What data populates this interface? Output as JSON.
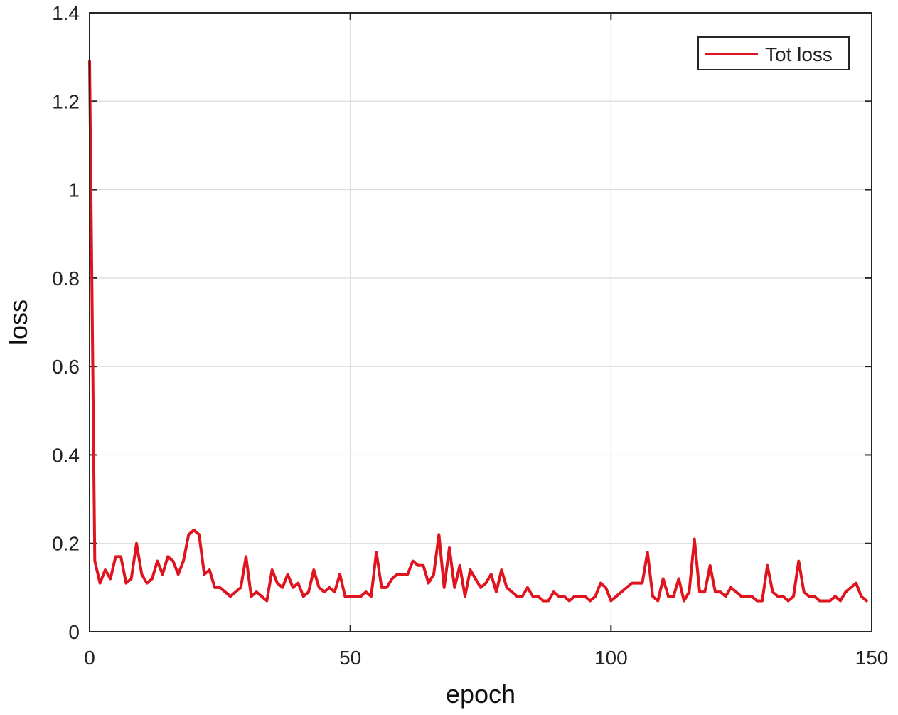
{
  "chart_data": {
    "type": "line",
    "title": "",
    "xlabel": "epoch",
    "ylabel": "loss",
    "xlim": [
      0,
      150
    ],
    "ylim": [
      0,
      1.4
    ],
    "x_ticks": [
      "0",
      "50",
      "100",
      "150"
    ],
    "y_ticks": [
      "0",
      "0.2",
      "0.4",
      "0.6",
      "0.8",
      "1",
      "1.2",
      "1.4"
    ],
    "x_tick_values": [
      0,
      50,
      100,
      150
    ],
    "y_tick_values": [
      0,
      0.2,
      0.4,
      0.6,
      0.8,
      1,
      1.2,
      1.4
    ],
    "grid": true,
    "legend_position": "top-right",
    "series": [
      {
        "name": "Tot loss",
        "color": "#e0141e",
        "x": [
          0,
          1,
          2,
          3,
          4,
          5,
          6,
          7,
          8,
          9,
          10,
          11,
          12,
          13,
          14,
          15,
          16,
          17,
          18,
          19,
          20,
          21,
          22,
          23,
          24,
          25,
          26,
          27,
          28,
          29,
          30,
          31,
          32,
          33,
          34,
          35,
          36,
          37,
          38,
          39,
          40,
          41,
          42,
          43,
          44,
          45,
          46,
          47,
          48,
          49,
          50,
          51,
          52,
          53,
          54,
          55,
          56,
          57,
          58,
          59,
          60,
          61,
          62,
          63,
          64,
          65,
          66,
          67,
          68,
          69,
          70,
          71,
          72,
          73,
          74,
          75,
          76,
          77,
          78,
          79,
          80,
          81,
          82,
          83,
          84,
          85,
          86,
          87,
          88,
          89,
          90,
          91,
          92,
          93,
          94,
          95,
          96,
          97,
          98,
          99,
          100,
          101,
          102,
          103,
          104,
          105,
          106,
          107,
          108,
          109,
          110,
          111,
          112,
          113,
          114,
          115,
          116,
          117,
          118,
          119,
          120,
          121,
          122,
          123,
          124,
          125,
          126,
          127,
          128,
          129,
          130,
          131,
          132,
          133,
          134,
          135,
          136,
          137,
          138,
          139,
          140,
          141,
          142,
          143,
          144,
          145,
          146,
          147,
          148,
          149
        ],
        "y": [
          1.29,
          0.16,
          0.11,
          0.14,
          0.12,
          0.17,
          0.17,
          0.11,
          0.12,
          0.2,
          0.13,
          0.11,
          0.12,
          0.16,
          0.13,
          0.17,
          0.16,
          0.13,
          0.16,
          0.22,
          0.23,
          0.22,
          0.13,
          0.14,
          0.1,
          0.1,
          0.09,
          0.08,
          0.09,
          0.1,
          0.17,
          0.08,
          0.09,
          0.08,
          0.07,
          0.14,
          0.11,
          0.1,
          0.13,
          0.1,
          0.11,
          0.08,
          0.09,
          0.14,
          0.1,
          0.09,
          0.1,
          0.09,
          0.13,
          0.08,
          0.08,
          0.08,
          0.08,
          0.09,
          0.08,
          0.18,
          0.1,
          0.1,
          0.12,
          0.13,
          0.13,
          0.13,
          0.16,
          0.15,
          0.15,
          0.11,
          0.13,
          0.22,
          0.1,
          0.19,
          0.1,
          0.15,
          0.08,
          0.14,
          0.12,
          0.1,
          0.11,
          0.13,
          0.09,
          0.14,
          0.1,
          0.09,
          0.08,
          0.08,
          0.1,
          0.08,
          0.08,
          0.07,
          0.07,
          0.09,
          0.08,
          0.08,
          0.07,
          0.08,
          0.08,
          0.08,
          0.07,
          0.08,
          0.11,
          0.1,
          0.07,
          0.08,
          0.09,
          0.1,
          0.11,
          0.11,
          0.11,
          0.18,
          0.08,
          0.07,
          0.12,
          0.08,
          0.08,
          0.12,
          0.07,
          0.09,
          0.21,
          0.09,
          0.09,
          0.15,
          0.09,
          0.09,
          0.08,
          0.1,
          0.09,
          0.08,
          0.08,
          0.08,
          0.07,
          0.07,
          0.15,
          0.09,
          0.08,
          0.08,
          0.07,
          0.08,
          0.16,
          0.09,
          0.08,
          0.08,
          0.07,
          0.07,
          0.07,
          0.08,
          0.07,
          0.09,
          0.1,
          0.11,
          0.08,
          0.07
        ]
      }
    ]
  }
}
